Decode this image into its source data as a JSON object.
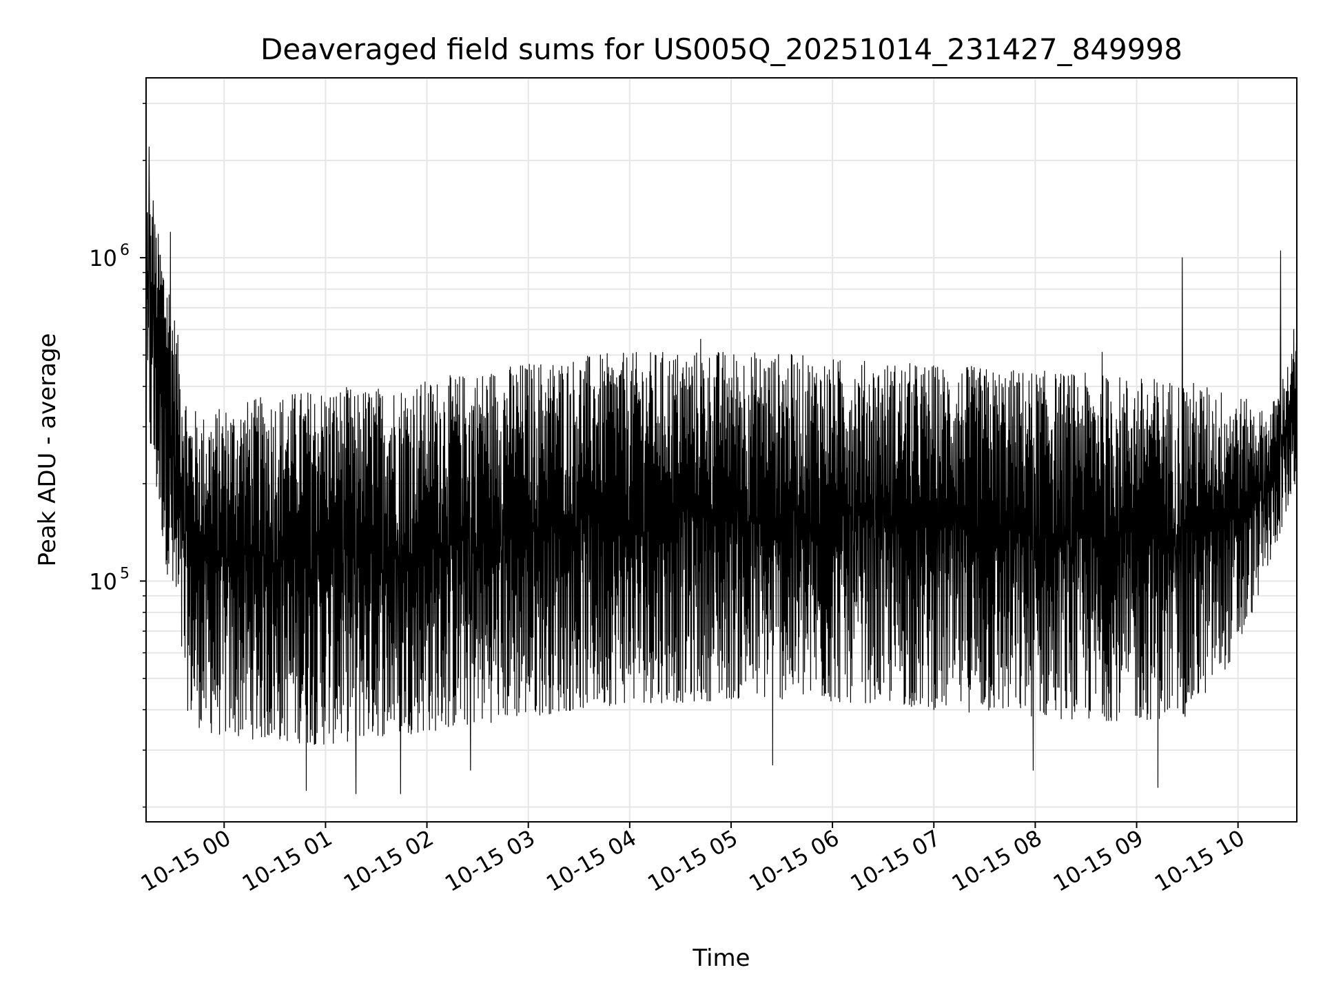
{
  "chart_data": {
    "type": "line",
    "title": "Deaveraged field sums for US005Q_20251014_231427_849998",
    "xlabel": "Time",
    "ylabel": "Peak ADU - average",
    "yscale": "log",
    "ylim": [
      18000,
      3600000
    ],
    "xlim_hours": [
      -0.77,
      10.58
    ],
    "x_tick_labels": [
      "10-15 00",
      "10-15 01",
      "10-15 02",
      "10-15 03",
      "10-15 04",
      "10-15 05",
      "10-15 06",
      "10-15 07",
      "10-15 08",
      "10-15 09",
      "10-15 10"
    ],
    "x_tick_hours": [
      0,
      1,
      2,
      3,
      4,
      5,
      6,
      7,
      8,
      9,
      10
    ],
    "y_tick_labels": [
      {
        "base": "10",
        "exp": "5",
        "value": 100000
      },
      {
        "base": "10",
        "exp": "6",
        "value": 1000000
      }
    ],
    "grid": true,
    "line_color": "#000000",
    "series": [
      {
        "name": "Peak ADU - average",
        "envelope": {
          "hours": [
            -0.77,
            -0.55,
            -0.35,
            -0.2,
            0.0,
            0.5,
            1.0,
            1.5,
            2.0,
            2.5,
            3.0,
            3.5,
            4.0,
            4.5,
            5.0,
            5.5,
            6.0,
            6.5,
            7.0,
            7.5,
            8.0,
            8.5,
            9.0,
            9.5,
            10.0,
            10.3,
            10.58
          ],
          "upper": [
            1700000,
            900000,
            350000,
            330000,
            350000,
            380000,
            400000,
            400000,
            420000,
            450000,
            480000,
            500000,
            510000,
            520000,
            520000,
            510000,
            490000,
            480000,
            470000,
            460000,
            450000,
            440000,
            430000,
            420000,
            380000,
            330000,
            560000
          ],
          "lower": [
            300000,
            100000,
            38000,
            34000,
            33000,
            32000,
            31000,
            33000,
            34000,
            36000,
            38000,
            40000,
            42000,
            42000,
            43000,
            43000,
            42000,
            42000,
            40000,
            39000,
            38000,
            37000,
            37000,
            38000,
            60000,
            110000,
            200000
          ]
        },
        "spikes": [
          {
            "hour": -0.74,
            "value": 2200000
          },
          {
            "hour": -0.7,
            "value": 1500000
          },
          {
            "hour": -0.53,
            "value": 1200000
          },
          {
            "hour": 9.45,
            "value": 1000000
          },
          {
            "hour": 10.42,
            "value": 1050000
          },
          {
            "hour": 10.55,
            "value": 600000
          },
          {
            "hour": 9.21,
            "value": 23000
          },
          {
            "hour": 1.3,
            "value": 22000
          },
          {
            "hour": 1.74,
            "value": 22000
          },
          {
            "hour": 0.81,
            "value": 22500
          },
          {
            "hour": 7.98,
            "value": 26000
          },
          {
            "hour": 5.41,
            "value": 27000
          },
          {
            "hour": 4.7,
            "value": 560000
          },
          {
            "hour": 8.66,
            "value": 510000
          },
          {
            "hour": 2.43,
            "value": 26000
          }
        ]
      }
    ]
  }
}
